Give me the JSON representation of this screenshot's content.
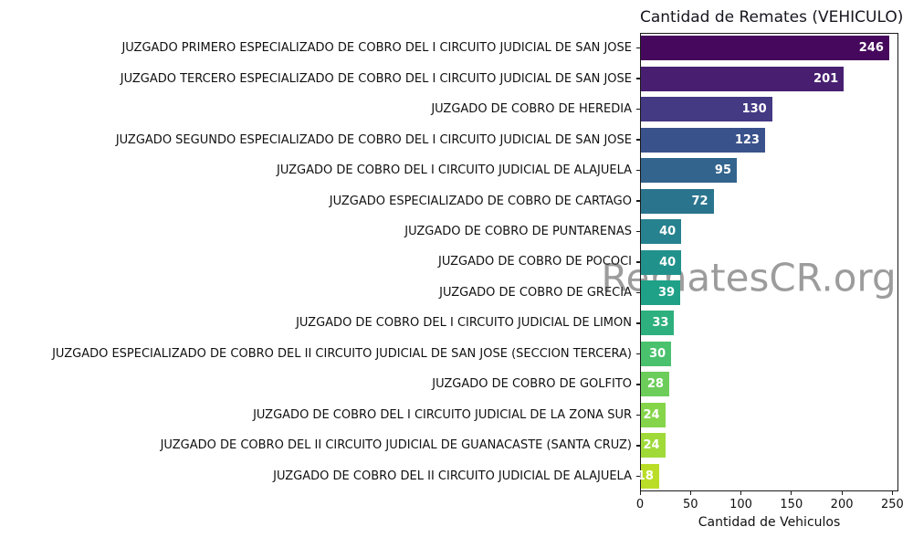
{
  "chart_data": {
    "type": "bar",
    "orientation": "horizontal",
    "title": "Cantidad de Remates (VEHICULO)",
    "xlabel": "Cantidad de Vehiculos",
    "ylabel": "",
    "grid": false,
    "legend": null,
    "xlim": [
      0,
      256
    ],
    "xticks": [
      0,
      50,
      100,
      150,
      200,
      250
    ],
    "categories": [
      "JUZGADO PRIMERO ESPECIALIZADO DE COBRO DEL I CIRCUITO JUDICIAL DE SAN JOSE",
      "JUZGADO TERCERO ESPECIALIZADO DE COBRO DEL I CIRCUITO JUDICIAL DE SAN JOSE",
      "JUZGADO DE COBRO DE HEREDIA",
      "JUZGADO SEGUNDO ESPECIALIZADO DE COBRO DEL I CIRCUITO JUDICIAL DE SAN JOSE",
      "JUZGADO DE COBRO DEL I CIRCUITO JUDICIAL DE ALAJUELA",
      "JUZGADO ESPECIALIZADO DE COBRO DE CARTAGO",
      "JUZGADO DE COBRO DE PUNTARENAS",
      "JUZGADO DE COBRO DE POCOCI",
      "JUZGADO DE COBRO DE GRECIA",
      "JUZGADO DE COBRO DEL I CIRCUITO JUDICIAL DE LIMON",
      "JUZGADO ESPECIALIZADO DE COBRO DEL II CIRCUITO JUDICIAL DE SAN JOSE (SECCION TERCERA)",
      "JUZGADO DE COBRO DE GOLFITO",
      "JUZGADO DE COBRO DEL I CIRCUITO JUDICIAL DE LA ZONA SUR",
      "JUZGADO DE COBRO DEL II CIRCUITO JUDICIAL DE GUANACASTE (SANTA CRUZ)",
      "JUZGADO DE COBRO DEL II CIRCUITO JUDICIAL DE ALAJUELA"
    ],
    "values": [
      246,
      201,
      130,
      123,
      95,
      72,
      40,
      40,
      39,
      33,
      30,
      28,
      24,
      24,
      18
    ],
    "bar_colors": [
      "#46085c",
      "#481f70",
      "#443983",
      "#3a528b",
      "#32648d",
      "#2b748e",
      "#26828e",
      "#21918c",
      "#1fa188",
      "#2db07e",
      "#4ac16d",
      "#6ccd5a",
      "#85d54a",
      "#a0da39",
      "#bade28"
    ],
    "value_label_color": "#ffffff",
    "axis_color": "#1a1a1a",
    "label_color": "#111111",
    "title_color": "#15151f"
  },
  "watermark": {
    "text": "RematesCR.org",
    "color": "#9b9b9b"
  }
}
